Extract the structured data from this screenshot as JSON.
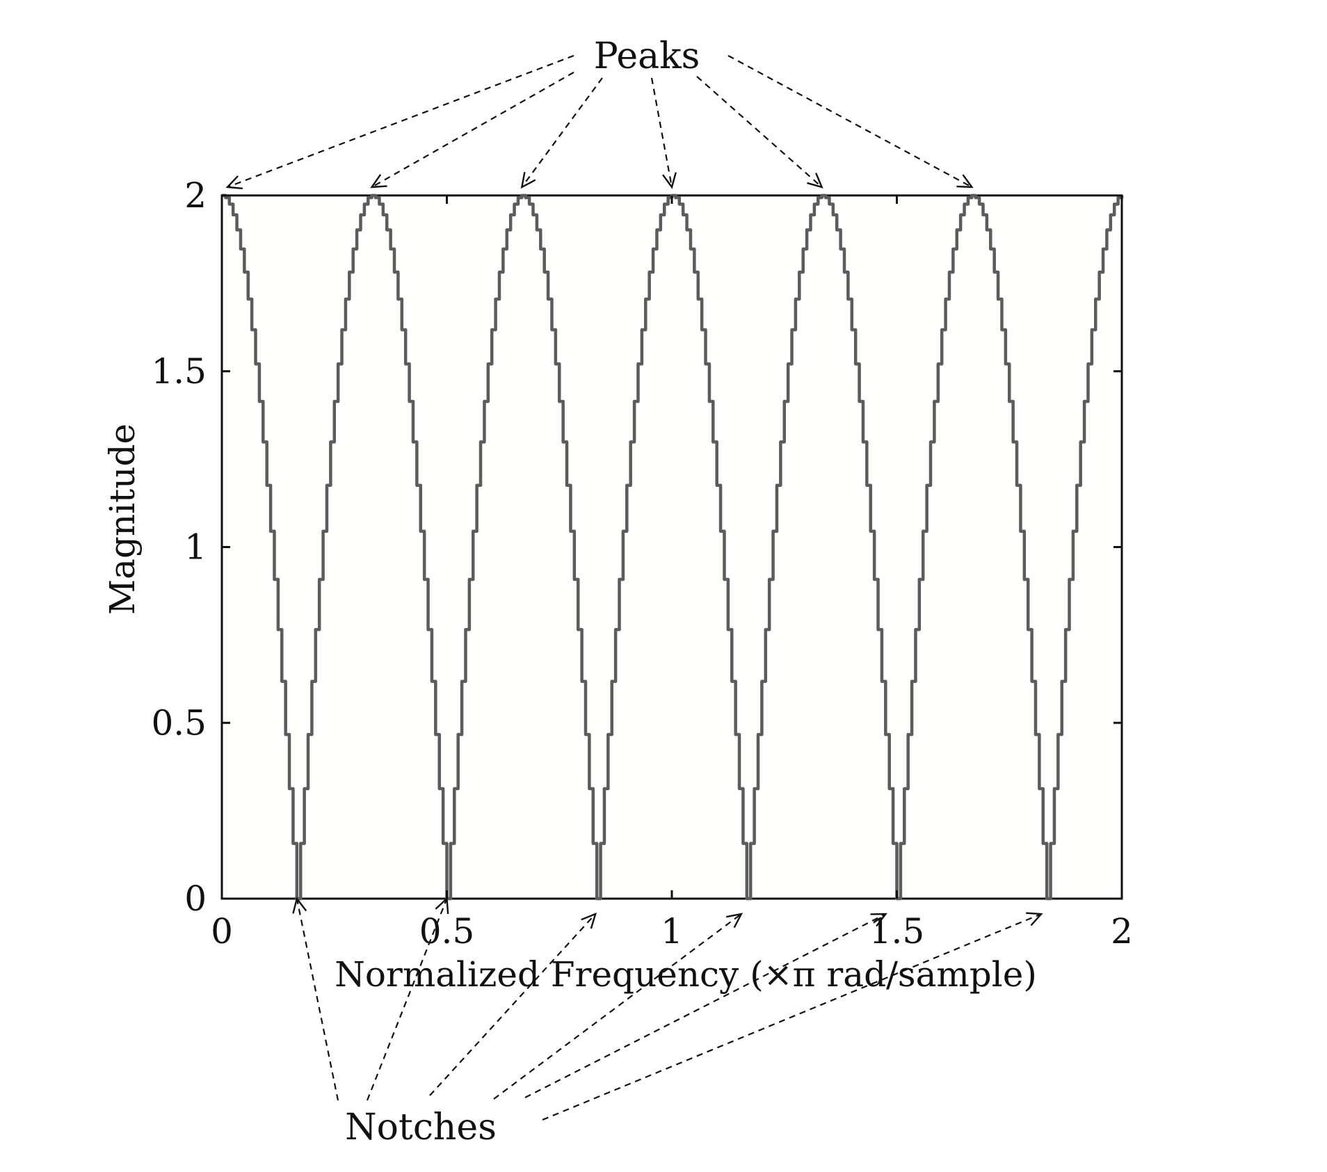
{
  "chart_data": {
    "type": "line",
    "title": "",
    "xlabel": "Normalized Frequency (×π rad/sample)",
    "ylabel": "Magnitude",
    "xlim": [
      0,
      2
    ],
    "ylim": [
      0,
      2
    ],
    "x_ticks": [
      0,
      0.5,
      1,
      1.5,
      2
    ],
    "x_tick_labels": [
      "0",
      "0.5",
      "1",
      "1.5",
      "2"
    ],
    "y_ticks": [
      0,
      0.5,
      1,
      1.5,
      2
    ],
    "y_tick_labels": [
      "0",
      "0.5",
      "1",
      "1.5",
      "2"
    ],
    "grid": false,
    "legend": "none",
    "series": [
      {
        "function": "|2·cos(3πx)|",
        "x_range": [
          0,
          2
        ],
        "color": "#5c5c5c",
        "peaks_x": [
          0,
          0.3333,
          0.6667,
          1,
          1.3333,
          1.6667,
          2
        ],
        "peaks_y": 2,
        "notches_x": [
          0.1667,
          0.5,
          0.8333,
          1.1667,
          1.5,
          1.8333
        ],
        "notches_y": 0
      }
    ],
    "annotations": [
      {
        "text": "Peaks",
        "targets_x": [
          0,
          0.3333,
          0.6667,
          1,
          1.3333,
          1.6667
        ],
        "targets_y": 2,
        "position": "top"
      },
      {
        "text": "Notches",
        "targets_x": [
          0.1667,
          0.5,
          0.8333,
          1.1667,
          1.5,
          1.8333
        ],
        "targets_y": 0,
        "position": "bottom"
      }
    ]
  }
}
